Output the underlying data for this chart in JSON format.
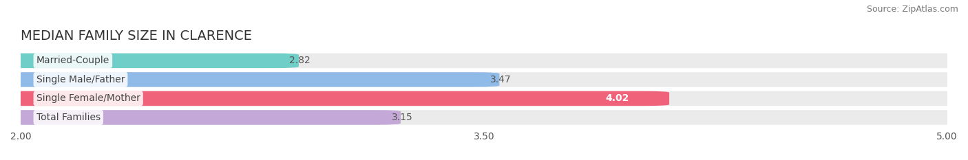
{
  "title": "MEDIAN FAMILY SIZE IN CLARENCE",
  "source": "Source: ZipAtlas.com",
  "categories": [
    "Married-Couple",
    "Single Male/Father",
    "Single Female/Mother",
    "Total Families"
  ],
  "values": [
    2.82,
    3.47,
    4.02,
    3.15
  ],
  "bar_colors": [
    "#70cec9",
    "#90bbe8",
    "#f0617a",
    "#c4a8d8"
  ],
  "value_white": [
    false,
    false,
    true,
    false
  ],
  "xlim": [
    2.0,
    5.0
  ],
  "xticks": [
    2.0,
    3.5,
    5.0
  ],
  "xtick_labels": [
    "2.00",
    "3.50",
    "5.00"
  ],
  "bar_height": 0.62,
  "background_color": "#ffffff",
  "bar_bg_color": "#ebebeb",
  "title_fontsize": 14,
  "source_fontsize": 9,
  "label_fontsize": 10,
  "value_fontsize": 10,
  "tick_fontsize": 10
}
